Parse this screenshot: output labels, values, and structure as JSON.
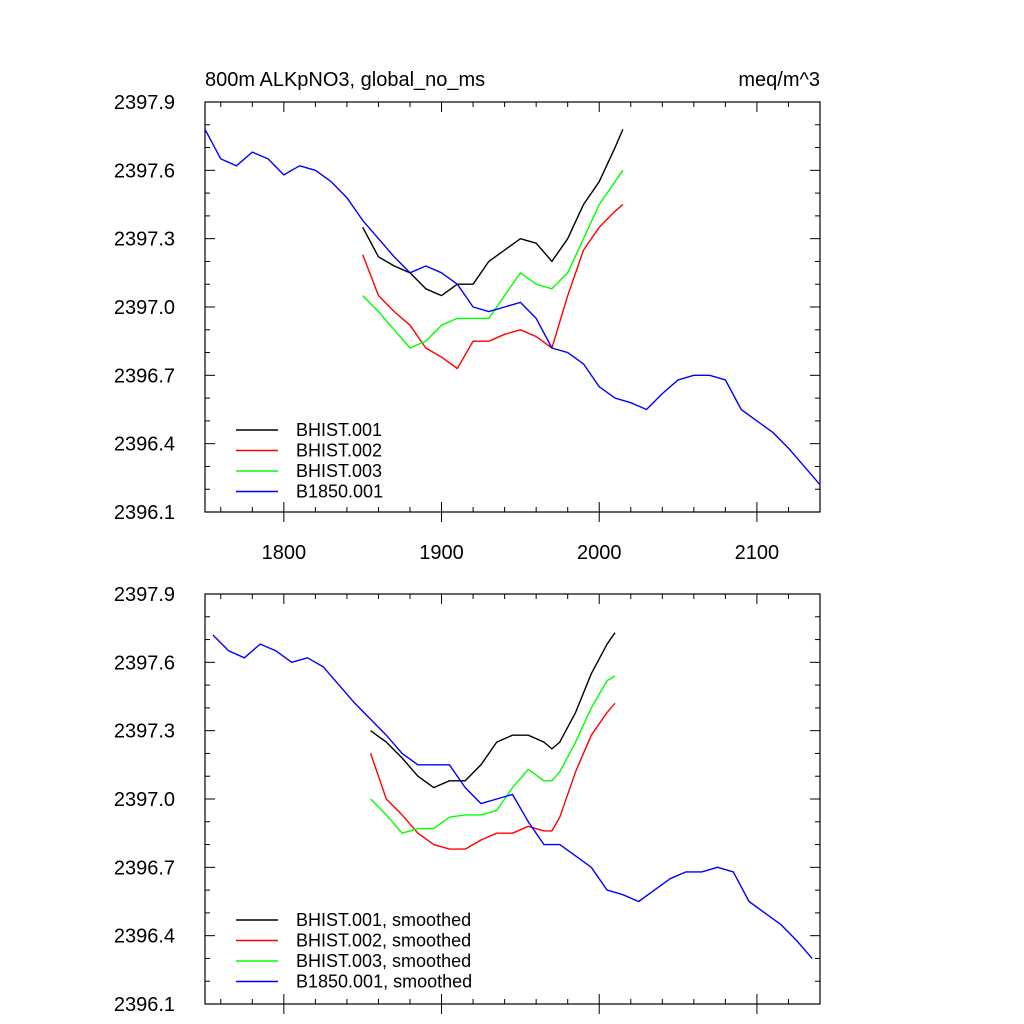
{
  "colors": {
    "BHIST.001": "#000000",
    "BHIST.002": "#ff0000",
    "BHIST.003": "#00ff00",
    "B1850.001": "#0000ff"
  },
  "chart_data": [
    {
      "type": "line",
      "title": "800m ALKpNO3, global_no_ms",
      "units": "meq/m^3",
      "xlim": [
        1750,
        2140
      ],
      "ylim": [
        2396.1,
        2397.9
      ],
      "x_ticks": [
        1800,
        1900,
        2000,
        2100
      ],
      "x_tick_labels": [
        "1800",
        "1900",
        "2000",
        "2100"
      ],
      "y_ticks": [
        2396.1,
        2396.4,
        2396.7,
        2397.0,
        2397.3,
        2397.6,
        2397.9
      ],
      "y_tick_labels": [
        "2396.1",
        "2396.4",
        "2396.7",
        "2397.0",
        "2397.3",
        "2397.6",
        "2397.9"
      ],
      "legend_position": "bottom-left",
      "series": [
        {
          "name": "BHIST.001",
          "x": [
            1850,
            1860,
            1870,
            1880,
            1890,
            1900,
            1910,
            1920,
            1930,
            1940,
            1950,
            1960,
            1970,
            1980,
            1990,
            2000,
            2010,
            2015
          ],
          "y": [
            2397.35,
            2397.22,
            2397.18,
            2397.15,
            2397.08,
            2397.05,
            2397.1,
            2397.1,
            2397.2,
            2397.25,
            2397.3,
            2397.28,
            2397.2,
            2397.3,
            2397.45,
            2397.55,
            2397.7,
            2397.78
          ]
        },
        {
          "name": "BHIST.002",
          "x": [
            1850,
            1860,
            1870,
            1880,
            1890,
            1900,
            1910,
            1920,
            1930,
            1940,
            1950,
            1960,
            1970,
            1980,
            1990,
            2000,
            2010,
            2015
          ],
          "y": [
            2397.23,
            2397.05,
            2396.98,
            2396.92,
            2396.82,
            2396.78,
            2396.73,
            2396.85,
            2396.85,
            2396.88,
            2396.9,
            2396.87,
            2396.82,
            2397.05,
            2397.25,
            2397.35,
            2397.42,
            2397.45
          ]
        },
        {
          "name": "BHIST.003",
          "x": [
            1850,
            1860,
            1870,
            1880,
            1890,
            1900,
            1910,
            1920,
            1930,
            1940,
            1950,
            1960,
            1970,
            1980,
            1990,
            2000,
            2010,
            2015
          ],
          "y": [
            2397.05,
            2396.98,
            2396.9,
            2396.82,
            2396.85,
            2396.92,
            2396.95,
            2396.95,
            2396.95,
            2397.05,
            2397.15,
            2397.1,
            2397.08,
            2397.15,
            2397.3,
            2397.45,
            2397.55,
            2397.6
          ]
        },
        {
          "name": "B1850.001",
          "x": [
            1750,
            1760,
            1770,
            1780,
            1790,
            1800,
            1810,
            1820,
            1830,
            1840,
            1850,
            1860,
            1870,
            1880,
            1890,
            1900,
            1910,
            1920,
            1930,
            1940,
            1950,
            1960,
            1970,
            1980,
            1990,
            2000,
            2010,
            2020,
            2030,
            2040,
            2050,
            2060,
            2070,
            2080,
            2090,
            2100,
            2110,
            2120,
            2130,
            2140
          ],
          "y": [
            2397.78,
            2397.65,
            2397.62,
            2397.68,
            2397.65,
            2397.58,
            2397.62,
            2397.6,
            2397.55,
            2397.48,
            2397.38,
            2397.3,
            2397.22,
            2397.15,
            2397.18,
            2397.15,
            2397.1,
            2397.0,
            2396.98,
            2397.0,
            2397.02,
            2396.95,
            2396.82,
            2396.8,
            2396.75,
            2396.65,
            2396.6,
            2396.58,
            2396.55,
            2396.62,
            2396.68,
            2396.7,
            2396.7,
            2396.68,
            2396.55,
            2396.5,
            2396.45,
            2396.38,
            2396.3,
            2396.22
          ]
        }
      ]
    },
    {
      "type": "line",
      "title": "",
      "units": "",
      "xlim": [
        1750,
        2140
      ],
      "ylim": [
        2396.1,
        2397.9
      ],
      "x_ticks": [
        1800,
        1900,
        2000,
        2100
      ],
      "x_tick_labels": [],
      "y_ticks": [
        2396.1,
        2396.4,
        2396.7,
        2397.0,
        2397.3,
        2397.6,
        2397.9
      ],
      "y_tick_labels": [
        "2396.1",
        "2396.4",
        "2396.7",
        "2397.0",
        "2397.3",
        "2397.6",
        "2397.9"
      ],
      "legend_position": "bottom-left",
      "series": [
        {
          "name": "BHIST.001, smoothed",
          "x": [
            1855,
            1865,
            1875,
            1885,
            1895,
            1905,
            1915,
            1925,
            1935,
            1945,
            1955,
            1965,
            1970,
            1975,
            1985,
            1995,
            2005,
            2010
          ],
          "y": [
            2397.3,
            2397.25,
            2397.18,
            2397.1,
            2397.05,
            2397.08,
            2397.08,
            2397.15,
            2397.25,
            2397.28,
            2397.28,
            2397.25,
            2397.22,
            2397.25,
            2397.38,
            2397.55,
            2397.68,
            2397.73
          ]
        },
        {
          "name": "BHIST.002, smoothed",
          "x": [
            1855,
            1865,
            1875,
            1885,
            1895,
            1905,
            1915,
            1925,
            1935,
            1945,
            1955,
            1965,
            1970,
            1975,
            1985,
            1995,
            2005,
            2010
          ],
          "y": [
            2397.2,
            2397.0,
            2396.93,
            2396.85,
            2396.8,
            2396.78,
            2396.78,
            2396.82,
            2396.85,
            2396.85,
            2396.88,
            2396.86,
            2396.86,
            2396.92,
            2397.12,
            2397.28,
            2397.38,
            2397.42
          ]
        },
        {
          "name": "BHIST.003, smoothed",
          "x": [
            1855,
            1865,
            1875,
            1885,
            1895,
            1905,
            1915,
            1925,
            1935,
            1945,
            1955,
            1965,
            1970,
            1975,
            1985,
            1995,
            2005,
            2010
          ],
          "y": [
            2397.0,
            2396.93,
            2396.85,
            2396.87,
            2396.87,
            2396.92,
            2396.93,
            2396.93,
            2396.95,
            2397.05,
            2397.13,
            2397.08,
            2397.08,
            2397.12,
            2397.25,
            2397.4,
            2397.52,
            2397.54
          ]
        },
        {
          "name": "B1850.001, smoothed",
          "x": [
            1755,
            1765,
            1775,
            1785,
            1795,
            1805,
            1815,
            1825,
            1835,
            1845,
            1855,
            1865,
            1875,
            1885,
            1895,
            1905,
            1915,
            1925,
            1935,
            1945,
            1955,
            1965,
            1975,
            1985,
            1995,
            2005,
            2015,
            2025,
            2035,
            2045,
            2055,
            2065,
            2075,
            2085,
            2095,
            2105,
            2115,
            2125,
            2135
          ],
          "y": [
            2397.72,
            2397.65,
            2397.62,
            2397.68,
            2397.65,
            2397.6,
            2397.62,
            2397.58,
            2397.5,
            2397.42,
            2397.35,
            2397.28,
            2397.2,
            2397.15,
            2397.15,
            2397.15,
            2397.05,
            2396.98,
            2397.0,
            2397.02,
            2396.9,
            2396.8,
            2396.8,
            2396.75,
            2396.7,
            2396.6,
            2396.58,
            2396.55,
            2396.6,
            2396.65,
            2396.68,
            2396.68,
            2396.7,
            2396.68,
            2396.55,
            2396.5,
            2396.45,
            2396.38,
            2396.3
          ]
        }
      ]
    }
  ]
}
